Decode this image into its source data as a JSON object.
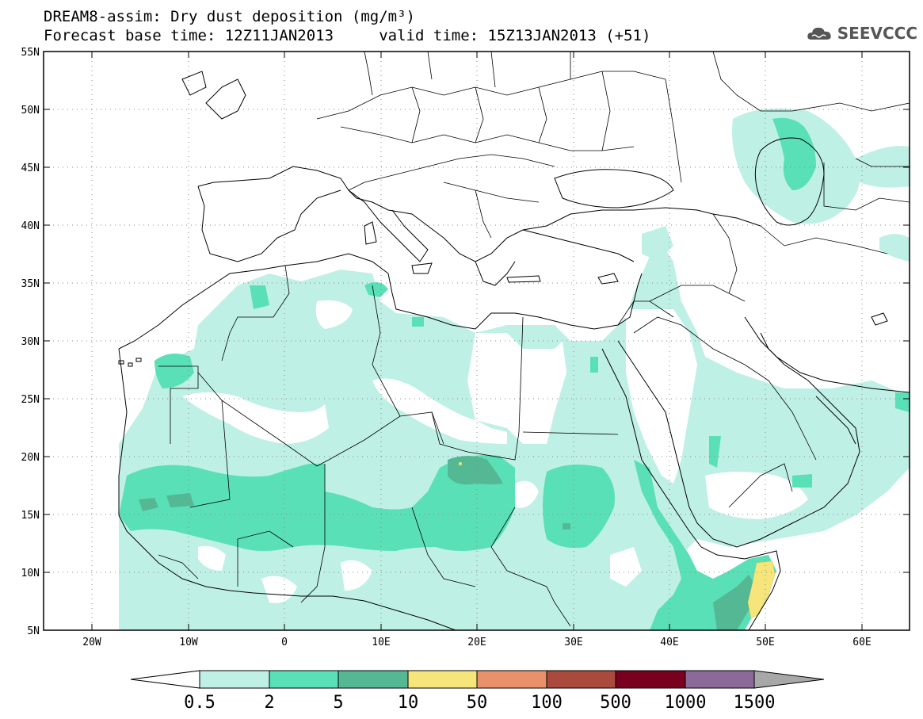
{
  "header": {
    "line1": "DREAM8-assim: Dry dust deposition (mg/m³)",
    "line2": "Forecast base time: 12Z11JAN2013     valid time: 15Z13JAN2013 (+51)"
  },
  "logo": {
    "icon": "cloud-icon",
    "text": "SEEVCCC"
  },
  "map": {
    "lat_labels": [
      "55N",
      "50N",
      "45N",
      "40N",
      "35N",
      "30N",
      "25N",
      "20N",
      "15N",
      "10N",
      "5N"
    ],
    "lon_labels": [
      "20W",
      "10W",
      "0",
      "10E",
      "20E",
      "30E",
      "40E",
      "50E",
      "60E"
    ],
    "extent": {
      "lon": [
        -25,
        65
      ],
      "lat": [
        5,
        55
      ]
    },
    "grid": "dotted"
  },
  "colorbar": {
    "labels": [
      "0.5",
      "2",
      "5",
      "10",
      "50",
      "100",
      "500",
      "1000",
      "1500"
    ],
    "colors": [
      "#ffffff",
      "#bff0e6",
      "#5ae0b6",
      "#55b895",
      "#f5e57a",
      "#e9916a",
      "#a94a3d",
      "#7a0020",
      "#8b6a9a",
      "#a8a8a8"
    ]
  }
}
